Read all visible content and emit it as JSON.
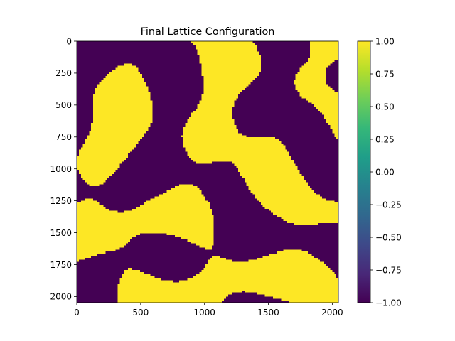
{
  "chart_data": {
    "type": "heatmap",
    "title": "Final Lattice Configuration",
    "xlabel": "",
    "ylabel": "",
    "xlim": [
      0,
      2048
    ],
    "ylim": [
      2048,
      0
    ],
    "x_ticks": [
      {
        "value": 0,
        "label": "0"
      },
      {
        "value": 500,
        "label": "500"
      },
      {
        "value": 1000,
        "label": "1000"
      },
      {
        "value": 1500,
        "label": "1500"
      },
      {
        "value": 2000,
        "label": "2000"
      }
    ],
    "y_ticks": [
      {
        "value": 0,
        "label": "0"
      },
      {
        "value": 250,
        "label": "250"
      },
      {
        "value": 500,
        "label": "500"
      },
      {
        "value": 750,
        "label": "750"
      },
      {
        "value": 1000,
        "label": "1000"
      },
      {
        "value": 1250,
        "label": "1250"
      },
      {
        "value": 1500,
        "label": "1500"
      },
      {
        "value": 1750,
        "label": "1750"
      },
      {
        "value": 2000,
        "label": "2000"
      }
    ],
    "colormap": "viridis",
    "value_range": [
      -1.0,
      1.0
    ],
    "colorbar_ticks": [
      {
        "value": 1.0,
        "label": "1.00"
      },
      {
        "value": 0.75,
        "label": "0.75"
      },
      {
        "value": 0.5,
        "label": "0.50"
      },
      {
        "value": 0.25,
        "label": "0.25"
      },
      {
        "value": 0.0,
        "label": "0.00"
      },
      {
        "value": -0.25,
        "label": "−0.25"
      },
      {
        "value": -0.5,
        "label": "−0.50"
      },
      {
        "value": -0.75,
        "label": "−0.75"
      },
      {
        "value": -1.0,
        "label": "−1.00"
      }
    ],
    "lattice": {
      "states": [
        -1,
        1
      ],
      "pattern": "two-phase labyrinth domains (coarsening spin lattice)"
    },
    "grid": false,
    "legend": "colorbar-right"
  },
  "colors": {
    "spin_up": "#fde725",
    "spin_down": "#440154",
    "colormap_stops": [
      "#440154",
      "#482878",
      "#3e4989",
      "#31688e",
      "#26828e",
      "#1f9e89",
      "#35b779",
      "#6ece58",
      "#b5de2b",
      "#fde725"
    ]
  }
}
